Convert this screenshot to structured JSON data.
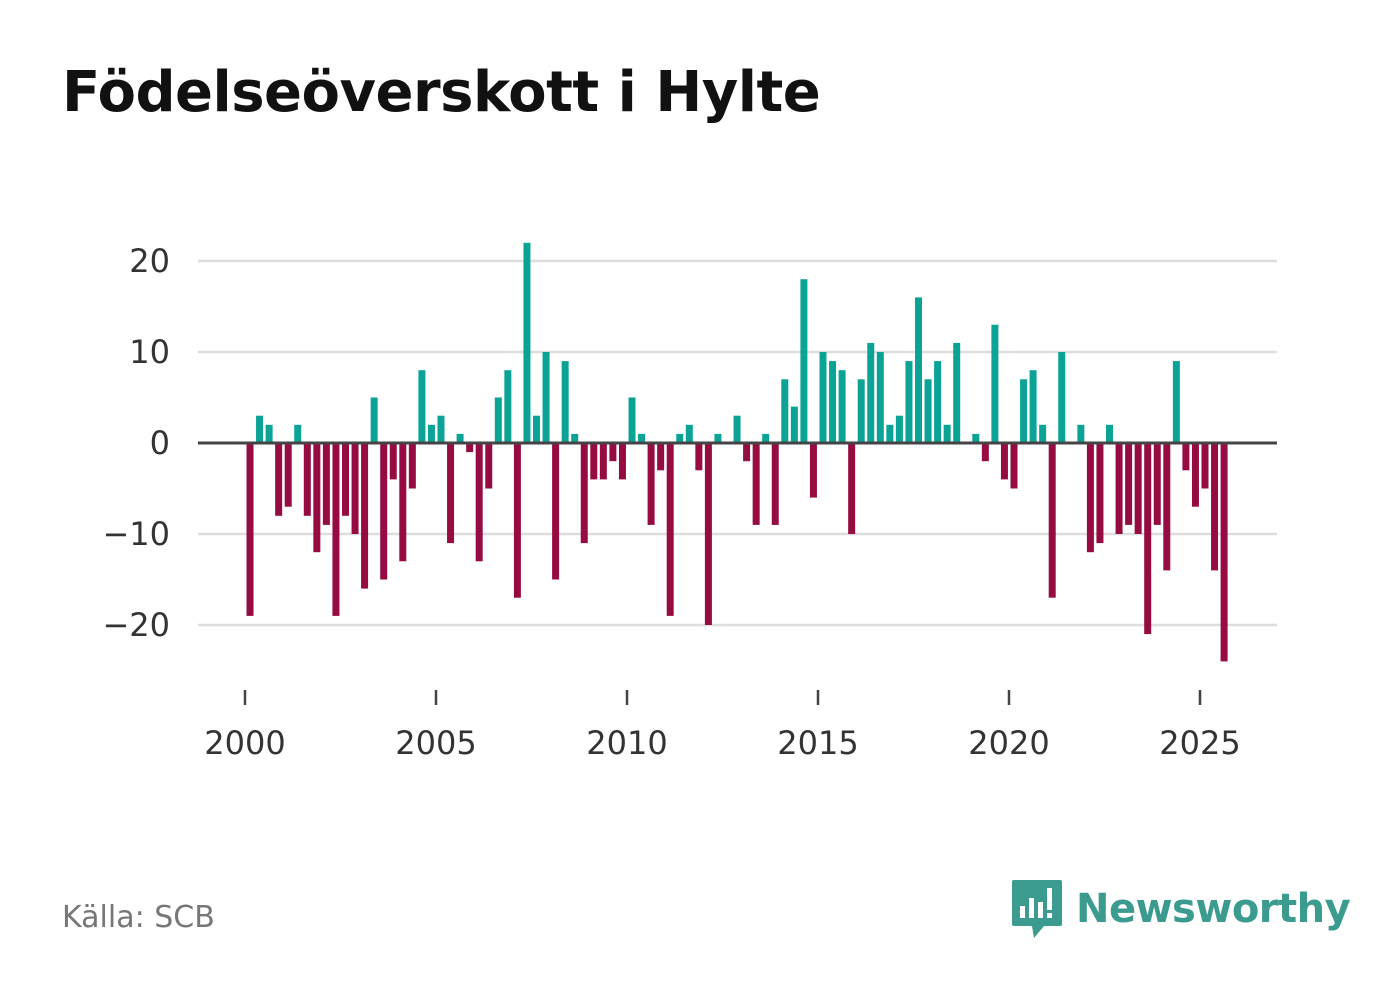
{
  "title": "Födelseöverskott i Hylte",
  "source": "Källa: SCB",
  "brand": "Newsworthy",
  "colors": {
    "positive": "#0aa396",
    "negative": "#960c42",
    "grid": "#dddddd",
    "zero": "#444444"
  },
  "chart_data": {
    "type": "bar",
    "title": "Födelseöverskott i Hylte",
    "xlabel": "",
    "ylabel": "",
    "frequency": "quarterly",
    "x_start": 2000.0,
    "x_step": 0.25,
    "xlim": [
      1999.5,
      2027.0
    ],
    "ylim": [
      -24,
      22
    ],
    "y_ticks": [
      20,
      10,
      0,
      -10,
      -20
    ],
    "y_tick_labels": [
      "20",
      "10",
      "0",
      "−10",
      "−20"
    ],
    "x_ticks": [
      2000,
      2005,
      2010,
      2015,
      2020,
      2025
    ],
    "x_tick_labels": [
      "2000",
      "2005",
      "2010",
      "2015",
      "2020",
      "2025"
    ],
    "values": [
      -19,
      3,
      2,
      -8,
      -7,
      2,
      -8,
      -12,
      -9,
      -19,
      -8,
      -10,
      -16,
      5,
      -15,
      -4,
      -13,
      -5,
      8,
      2,
      3,
      -11,
      1,
      -1,
      -13,
      -5,
      5,
      8,
      -17,
      22,
      3,
      10,
      -15,
      9,
      1,
      -11,
      -4,
      -4,
      -2,
      -4,
      5,
      1,
      -9,
      -3,
      -19,
      1,
      2,
      -3,
      -20,
      1,
      0,
      3,
      -2,
      -9,
      1,
      -9,
      7,
      4,
      18,
      -6,
      10,
      9,
      8,
      -10,
      7,
      11,
      10,
      2,
      3,
      9,
      16,
      7,
      9,
      2,
      11,
      0,
      1,
      -2,
      13,
      -4,
      -5,
      7,
      8,
      2,
      -17,
      10,
      0,
      2,
      -12,
      -11,
      2,
      -10,
      -9,
      -10,
      -21,
      -9,
      -14,
      9,
      -3,
      -7,
      -5,
      -14,
      -24
    ]
  }
}
